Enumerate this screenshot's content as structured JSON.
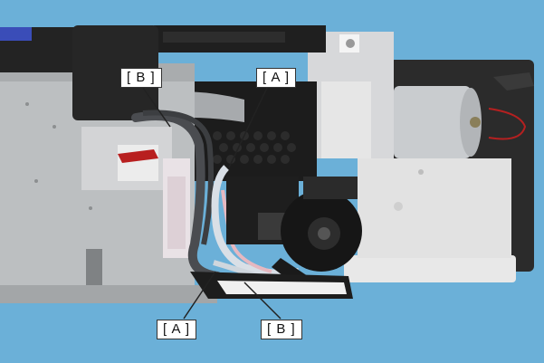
{
  "callouts": {
    "b_top": "[ B ]",
    "a_top": "[ A ]",
    "a_bottom": "[ A ]",
    "b_bottom": "[ B ]"
  },
  "colors": {
    "background": "#6bb0d8",
    "chassis": "#b9bcbe",
    "dark_frame": "#2a2a2a",
    "white_panel": "#e6e6e6",
    "tube": "#d9dfe6",
    "cable": "#4a4c50",
    "blue_part": "#3a4db8"
  }
}
